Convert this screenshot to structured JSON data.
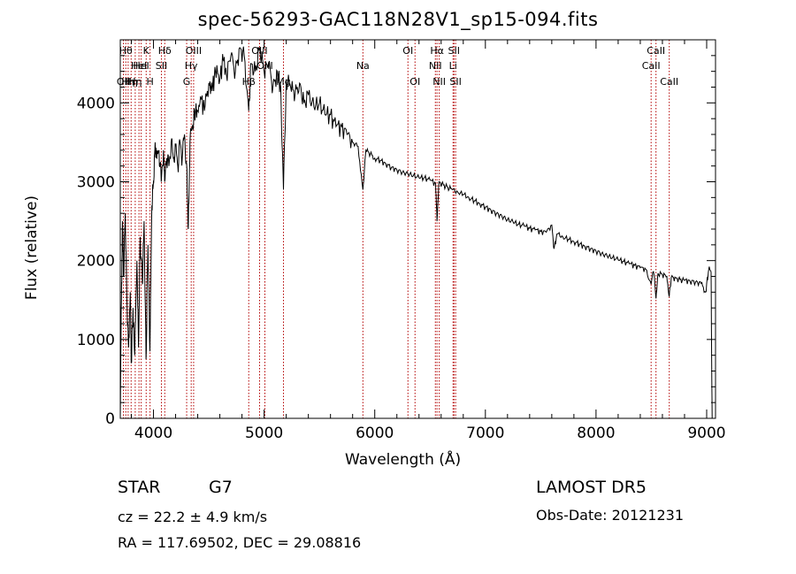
{
  "colors": {
    "spectrum": "#000000",
    "lines": "#b30000",
    "axes": "#000000"
  },
  "info": {
    "class": "STAR",
    "subclass": "G7",
    "redshift": "cz = 22.2 ± 4.9 km/s",
    "coords": "RA = 117.69502, DEC =  29.08816",
    "survey": "LAMOST  DR5",
    "obsdate": "Obs-Date: 20121231"
  },
  "chart_data": {
    "type": "line",
    "title": "spec-56293-GAC118N28V1_sp15-094.fits",
    "xlabel": "Wavelength (Å)",
    "ylabel": "Flux (relative)",
    "xlim": [
      3700,
      9080
    ],
    "ylim": [
      0,
      4800
    ],
    "x_ticks": [
      "4000",
      "5000",
      "6000",
      "7000",
      "8000",
      "9000"
    ],
    "y_ticks": [
      "0",
      "1000",
      "2000",
      "3000",
      "4000"
    ],
    "x_tick_values": [
      4000,
      5000,
      6000,
      7000,
      8000,
      9000
    ],
    "y_tick_values": [
      0,
      1000,
      2000,
      3000,
      4000
    ],
    "series": [
      {
        "points": [
          [
            3700,
            0
          ],
          [
            3710,
            1500
          ],
          [
            3720,
            2500
          ],
          [
            3730,
            1800
          ],
          [
            3745,
            2600
          ],
          [
            3760,
            1500
          ],
          [
            3775,
            900
          ],
          [
            3790,
            1600
          ],
          [
            3800,
            700
          ],
          [
            3815,
            1400
          ],
          [
            3830,
            800
          ],
          [
            3850,
            2000
          ],
          [
            3865,
            900
          ],
          [
            3880,
            2300
          ],
          [
            3900,
            1700
          ],
          [
            3915,
            2500
          ],
          [
            3933,
            750
          ],
          [
            3950,
            2200
          ],
          [
            3968,
            850
          ],
          [
            3985,
            2700
          ],
          [
            4000,
            3000
          ],
          [
            4015,
            3500
          ],
          [
            4030,
            3300
          ],
          [
            4050,
            3400
          ],
          [
            4070,
            3000
          ],
          [
            4090,
            3400
          ],
          [
            4101,
            3000
          ],
          [
            4120,
            3300
          ],
          [
            4140,
            3200
          ],
          [
            4160,
            3500
          ],
          [
            4180,
            3300
          ],
          [
            4200,
            3450
          ],
          [
            4220,
            3200
          ],
          [
            4240,
            3500
          ],
          [
            4260,
            3300
          ],
          [
            4280,
            3600
          ],
          [
            4300,
            3200
          ],
          [
            4315,
            2400
          ],
          [
            4330,
            3500
          ],
          [
            4350,
            3700
          ],
          [
            4370,
            3900
          ],
          [
            4400,
            3900
          ],
          [
            4430,
            4050
          ],
          [
            4460,
            3900
          ],
          [
            4500,
            4250
          ],
          [
            4530,
            4150
          ],
          [
            4560,
            4400
          ],
          [
            4600,
            4300
          ],
          [
            4630,
            4550
          ],
          [
            4660,
            4350
          ],
          [
            4700,
            4600
          ],
          [
            4740,
            4400
          ],
          [
            4780,
            4700
          ],
          [
            4820,
            4600
          ],
          [
            4861,
            3900
          ],
          [
            4880,
            4500
          ],
          [
            4920,
            4400
          ],
          [
            4960,
            4700
          ],
          [
            5000,
            4400
          ],
          [
            5040,
            4500
          ],
          [
            5080,
            4200
          ],
          [
            5120,
            4400
          ],
          [
            5150,
            4200
          ],
          [
            5175,
            2900
          ],
          [
            5200,
            4300
          ],
          [
            5240,
            4200
          ],
          [
            5280,
            4100
          ],
          [
            5320,
            4250
          ],
          [
            5360,
            4000
          ],
          [
            5400,
            4100
          ],
          [
            5450,
            3950
          ],
          [
            5500,
            4000
          ],
          [
            5550,
            3850
          ],
          [
            5600,
            3850
          ],
          [
            5650,
            3700
          ],
          [
            5700,
            3700
          ],
          [
            5750,
            3600
          ],
          [
            5800,
            3500
          ],
          [
            5850,
            3450
          ],
          [
            5893,
            2900
          ],
          [
            5920,
            3400
          ],
          [
            5960,
            3350
          ],
          [
            6000,
            3300
          ],
          [
            6050,
            3270
          ],
          [
            6100,
            3230
          ],
          [
            6150,
            3180
          ],
          [
            6200,
            3150
          ],
          [
            6250,
            3120
          ],
          [
            6300,
            3100
          ],
          [
            6350,
            3080
          ],
          [
            6400,
            3050
          ],
          [
            6450,
            3050
          ],
          [
            6500,
            3020
          ],
          [
            6550,
            2980
          ],
          [
            6563,
            2500
          ],
          [
            6580,
            3000
          ],
          [
            6620,
            2960
          ],
          [
            6660,
            2930
          ],
          [
            6700,
            2900
          ],
          [
            6750,
            2870
          ],
          [
            6800,
            2840
          ],
          [
            6850,
            2800
          ],
          [
            6900,
            2760
          ],
          [
            6950,
            2720
          ],
          [
            7000,
            2680
          ],
          [
            7050,
            2640
          ],
          [
            7100,
            2600
          ],
          [
            7150,
            2560
          ],
          [
            7200,
            2520
          ],
          [
            7250,
            2490
          ],
          [
            7300,
            2460
          ],
          [
            7350,
            2440
          ],
          [
            7400,
            2410
          ],
          [
            7450,
            2390
          ],
          [
            7500,
            2370
          ],
          [
            7550,
            2360
          ],
          [
            7600,
            2450
          ],
          [
            7620,
            2150
          ],
          [
            7650,
            2340
          ],
          [
            7700,
            2300
          ],
          [
            7750,
            2270
          ],
          [
            7800,
            2240
          ],
          [
            7850,
            2210
          ],
          [
            7900,
            2180
          ],
          [
            7950,
            2150
          ],
          [
            8000,
            2120
          ],
          [
            8050,
            2090
          ],
          [
            8100,
            2060
          ],
          [
            8150,
            2040
          ],
          [
            8200,
            2010
          ],
          [
            8250,
            1990
          ],
          [
            8300,
            1960
          ],
          [
            8350,
            1940
          ],
          [
            8400,
            1910
          ],
          [
            8450,
            1890
          ],
          [
            8498,
            1700
          ],
          [
            8520,
            1860
          ],
          [
            8542,
            1520
          ],
          [
            8560,
            1840
          ],
          [
            8600,
            1820
          ],
          [
            8640,
            1800
          ],
          [
            8662,
            1550
          ],
          [
            8680,
            1790
          ],
          [
            8720,
            1780
          ],
          [
            8760,
            1760
          ],
          [
            8800,
            1750
          ],
          [
            8850,
            1740
          ],
          [
            8900,
            1730
          ],
          [
            8950,
            1710
          ],
          [
            8990,
            1600
          ],
          [
            9020,
            1900
          ],
          [
            9040,
            1850
          ],
          [
            9045,
            800
          ],
          [
            9050,
            0
          ]
        ]
      }
    ],
    "lines": [
      {
        "wl": 3728,
        "labels": [
          "OII"
        ],
        "row": 3
      },
      {
        "wl": 3750,
        "labels": [
          "Hθ"
        ],
        "row": 1
      },
      {
        "wl": 3771,
        "labels": [
          "Hη"
        ],
        "row": 3
      },
      {
        "wl": 3798,
        "labels": [
          "Hη"
        ],
        "row": 3
      },
      {
        "wl": 3835,
        "labels": [
          "Hη"
        ],
        "row": 3
      },
      {
        "wl": 3869,
        "labels": [
          "HeI"
        ],
        "row": 2
      },
      {
        "wl": 3889,
        "labels": [
          "HeI"
        ],
        "row": 2
      },
      {
        "wl": 3934,
        "labels": [
          "K"
        ],
        "row": 1
      },
      {
        "wl": 3969,
        "labels": [
          "H"
        ],
        "row": 3
      },
      {
        "wl": 4072,
        "labels": [
          "SII"
        ],
        "row": 2
      },
      {
        "wl": 4102,
        "labels": [
          "Hδ"
        ],
        "row": 1
      },
      {
        "wl": 4300,
        "labels": [
          "G"
        ],
        "row": 3
      },
      {
        "wl": 4341,
        "labels": [
          "Hγ"
        ],
        "row": 2
      },
      {
        "wl": 4363,
        "labels": [
          "OIII"
        ],
        "row": 1
      },
      {
        "wl": 4861,
        "labels": [
          "Hβ"
        ],
        "row": 3
      },
      {
        "wl": 4959,
        "labels": [
          "OIII"
        ],
        "row": 1
      },
      {
        "wl": 5007,
        "labels": [
          "OIII"
        ],
        "row": 2
      },
      {
        "wl": 5175,
        "labels": [
          "Mg"
        ],
        "row": 3
      },
      {
        "wl": 5893,
        "labels": [
          "Na"
        ],
        "row": 2
      },
      {
        "wl": 6300,
        "labels": [
          "OI"
        ],
        "row": 1
      },
      {
        "wl": 6364,
        "labels": [
          "OI"
        ],
        "row": 3
      },
      {
        "wl": 6548,
        "labels": [
          "NII"
        ],
        "row": 2
      },
      {
        "wl": 6563,
        "labels": [
          "Hα"
        ],
        "row": 1
      },
      {
        "wl": 6583,
        "labels": [
          "NII"
        ],
        "row": 3
      },
      {
        "wl": 6708,
        "labels": [
          "Li"
        ],
        "row": 2
      },
      {
        "wl": 6716,
        "labels": [
          "SII"
        ],
        "row": 1
      },
      {
        "wl": 6731,
        "labels": [
          "SII"
        ],
        "row": 3
      },
      {
        "wl": 8498,
        "labels": [
          "CaII"
        ],
        "row": 2
      },
      {
        "wl": 8542,
        "labels": [
          "CaII"
        ],
        "row": 1
      },
      {
        "wl": 8662,
        "labels": [
          "CaII"
        ],
        "row": 3
      }
    ]
  }
}
